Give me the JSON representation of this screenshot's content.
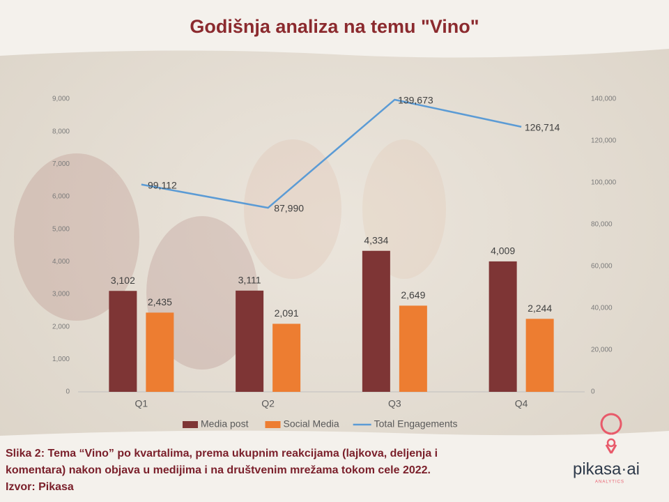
{
  "chart_data": {
    "type": "bar-line",
    "title": "Godišnja analiza na temu \"Vino\"",
    "categories": [
      "Q1",
      "Q2",
      "Q3",
      "Q4"
    ],
    "series": [
      {
        "name": "Media post",
        "type": "bar",
        "color": "#7e3535",
        "values": [
          3102,
          3111,
          4334,
          4009
        ],
        "value_labels": [
          "3,102",
          "3,111",
          "4,334",
          "4,009"
        ]
      },
      {
        "name": "Social Media",
        "type": "bar",
        "color": "#ed7d31",
        "values": [
          2435,
          2091,
          2649,
          2244
        ],
        "value_labels": [
          "2,435",
          "2,091",
          "2,649",
          "2,244"
        ]
      },
      {
        "name": "Total Engagements",
        "type": "line",
        "axis": "y2",
        "color": "#5b9bd5",
        "values": [
          99112,
          87990,
          139673,
          126714
        ],
        "value_labels": [
          "99,112",
          "87,990",
          "139,673",
          "126,714"
        ]
      }
    ],
    "ylim": [
      0,
      9000
    ],
    "yticks": [
      0,
      {
        "value": 1000,
        "label": "1,000"
      },
      {
        "value": 2000,
        "label": "2,000"
      },
      {
        "value": 3000,
        "label": "3,000"
      },
      {
        "value": 4000,
        "label": "4,000"
      },
      {
        "value": 5000,
        "label": "5,000"
      },
      {
        "value": 6000,
        "label": "6,000"
      },
      {
        "value": 7000,
        "label": "7,000"
      },
      {
        "value": 8000,
        "label": "8,000"
      },
      {
        "value": 9000,
        "label": "9,000"
      }
    ],
    "y2lim": [
      0,
      140000
    ],
    "y2ticks": [
      0,
      {
        "value": 20000,
        "label": "20,000"
      },
      {
        "value": 40000,
        "label": "40,000"
      },
      {
        "value": 60000,
        "label": "60,000"
      },
      {
        "value": 80000,
        "label": "80,000"
      },
      {
        "value": 100000,
        "label": "100,000"
      },
      {
        "value": 120000,
        "label": "120,000"
      },
      {
        "value": 140000,
        "label": "140,000"
      }
    ],
    "legend": "bottom"
  },
  "caption": {
    "lines": [
      "Slika 2: Tema “Vino” po kvartalima, prema ukupnim reakcijama (lajkova, deljenja i",
      "komentara) nakon objava u medijima i na društvenim mrežama tokom cele 2022.",
      "Izvor: Pikasa"
    ]
  },
  "logo": {
    "name": "pikasa·ai",
    "tagline": "ANALYTICS"
  }
}
